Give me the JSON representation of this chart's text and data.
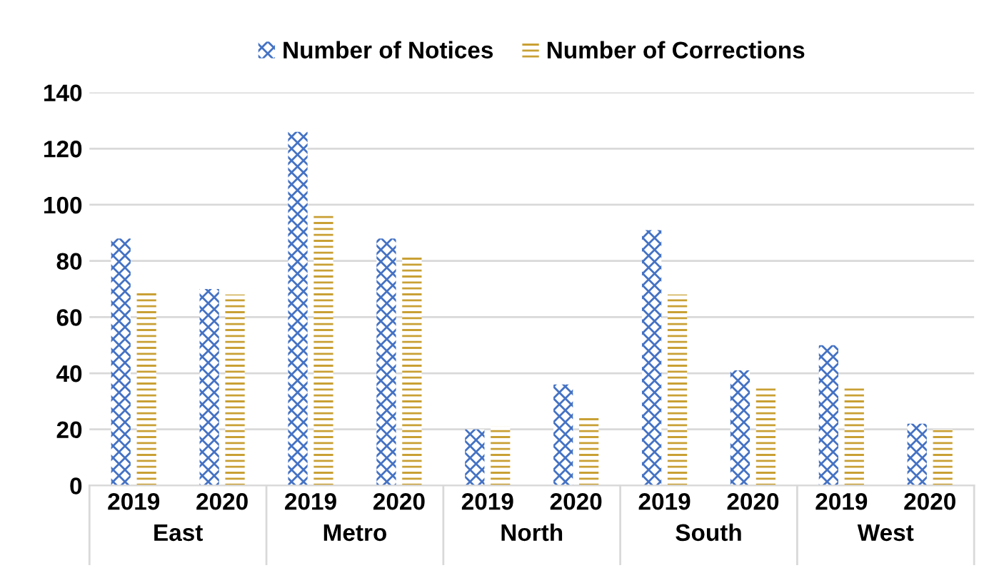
{
  "chart_data": {
    "type": "bar",
    "categories": [
      "2019",
      "2020",
      "2019",
      "2020",
      "2019",
      "2020",
      "2019",
      "2020",
      "2019",
      "2020"
    ],
    "series": [
      {
        "name": "Number of Notices",
        "color": "#4472c4",
        "values": [
          88,
          70,
          126,
          88,
          20,
          36,
          91,
          41,
          50,
          22
        ]
      },
      {
        "name": "Number of Corrections",
        "color": "#c9a034",
        "values": [
          69,
          68,
          97,
          82,
          21,
          24,
          68,
          35,
          35,
          20
        ]
      }
    ],
    "annotations": [
      "East",
      "Metro",
      "North",
      "South",
      "West"
    ],
    "ylim": [
      0,
      140
    ],
    "yticks": [
      0,
      20,
      40,
      60,
      80,
      100,
      120,
      140
    ],
    "grid": "y",
    "legend": "top"
  }
}
